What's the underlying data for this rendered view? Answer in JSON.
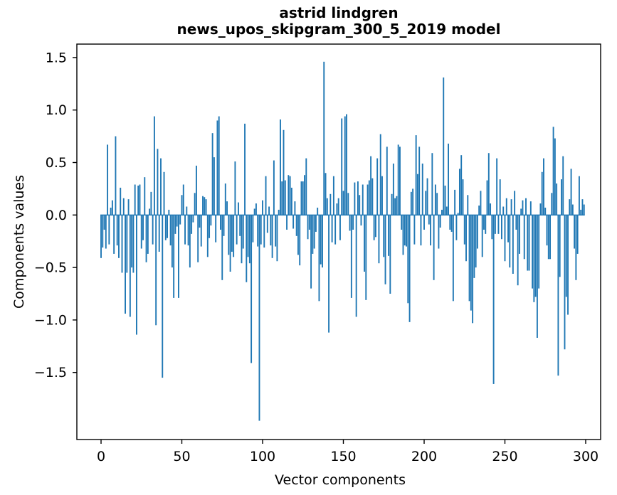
{
  "figure": {
    "title_line1": "astrid lindgren",
    "title_line2": "news_upos_skipgram_300_5_2019 model",
    "xlabel": "Vector components",
    "ylabel": "Components values"
  },
  "chart_data": {
    "type": "bar",
    "title": "astrid lindgren\nnews_upos_skipgram_300_5_2019 model",
    "xlabel": "Vector components",
    "ylabel": "Components values",
    "bar_color": "#1f77b4",
    "background_color": "#ffffff",
    "grid": false,
    "legend": false,
    "x_ticks": [
      0,
      50,
      100,
      150,
      200,
      250,
      300
    ],
    "x_tick_labels": [
      "0",
      "50",
      "100",
      "150",
      "200",
      "250",
      "300"
    ],
    "y_ticks": [
      1.5,
      1.0,
      0.5,
      0.0,
      -0.5,
      -1.0,
      -1.5
    ],
    "y_tick_labels": [
      "1.5",
      "1.0",
      "0.5",
      "0.0",
      "−0.5",
      "−1.0",
      "−1.5"
    ],
    "xlim": [
      -15,
      309
    ],
    "ylim": [
      -2.14,
      1.63
    ],
    "x": "component index 0..299",
    "values": [
      -0.41,
      -0.31,
      -0.14,
      -0.32,
      0.67,
      -0.28,
      0.07,
      0.14,
      -0.37,
      0.75,
      -0.29,
      -0.41,
      0.26,
      -0.55,
      0.16,
      -0.94,
      -0.55,
      0.15,
      -0.97,
      -0.5,
      -0.55,
      0.29,
      -1.14,
      0.28,
      0.29,
      -0.32,
      -0.24,
      0.36,
      -0.45,
      -0.37,
      0.06,
      0.22,
      -0.28,
      0.94,
      -1.05,
      0.63,
      -0.35,
      0.54,
      -1.55,
      0.41,
      -0.24,
      -0.22,
      0.05,
      -0.29,
      -0.5,
      -0.79,
      -0.18,
      -0.11,
      -0.79,
      -0.09,
      0.19,
      0.29,
      -0.28,
      0.08,
      -0.29,
      -0.5,
      -0.18,
      -0.07,
      0.21,
      0.47,
      -0.45,
      -0.12,
      -0.3,
      0.18,
      0.17,
      0.15,
      -0.4,
      -0.22,
      -0.1,
      0.78,
      0.55,
      -0.26,
      0.9,
      0.94,
      -0.14,
      -0.62,
      -0.2,
      0.3,
      0.13,
      -0.38,
      -0.54,
      -0.35,
      -0.4,
      0.51,
      -0.28,
      0.12,
      -0.2,
      -0.46,
      -0.32,
      0.87,
      -0.64,
      -0.4,
      -0.46,
      -1.41,
      -0.26,
      0.06,
      0.11,
      -0.3,
      -1.96,
      -0.28,
      0.14,
      -0.31,
      0.37,
      -0.17,
      0.08,
      -0.29,
      -0.41,
      0.52,
      -0.3,
      -0.44,
      0.05,
      0.91,
      0.32,
      0.81,
      0.33,
      -0.14,
      0.38,
      0.37,
      0.26,
      -0.13,
      0.13,
      -0.2,
      -0.38,
      -0.48,
      0.32,
      0.32,
      0.38,
      0.54,
      -0.23,
      -0.14,
      -0.7,
      -0.37,
      -0.32,
      -0.16,
      0.07,
      -0.82,
      -0.47,
      -0.5,
      1.46,
      0.4,
      0.16,
      -1.12,
      0.2,
      -0.26,
      0.37,
      -0.28,
      0.11,
      0.16,
      -0.24,
      0.92,
      0.23,
      0.94,
      0.96,
      0.21,
      -0.15,
      -0.79,
      -0.14,
      0.31,
      -0.97,
      0.32,
      0.19,
      -0.1,
      0.29,
      -0.54,
      -0.81,
      0.29,
      0.33,
      0.56,
      0.35,
      -0.24,
      -0.21,
      0.54,
      -0.46,
      0.77,
      0.37,
      -0.4,
      -0.66,
      0.65,
      -0.39,
      -0.75,
      0.2,
      0.49,
      0.16,
      0.18,
      0.67,
      0.65,
      -0.14,
      -0.38,
      -0.29,
      -0.3,
      -0.84,
      -1.02,
      0.22,
      0.25,
      -0.28,
      0.76,
      0.39,
      0.65,
      -0.29,
      0.49,
      -0.14,
      0.23,
      0.35,
      -0.09,
      -0.29,
      0.59,
      -0.62,
      0.29,
      0.21,
      -0.32,
      -0.12,
      0.05,
      1.31,
      0.28,
      0.08,
      0.68,
      -0.14,
      -0.16,
      -0.82,
      0.24,
      -0.24,
      0.02,
      0.44,
      0.57,
      0.34,
      -0.28,
      -0.44,
      0.19,
      -0.82,
      -0.91,
      -1.03,
      -0.6,
      -0.5,
      -0.32,
      0.09,
      0.23,
      -0.4,
      -0.14,
      -0.18,
      0.33,
      0.59,
      0.11,
      -0.23,
      -1.61,
      -0.18,
      0.54,
      -0.18,
      0.34,
      -0.23,
      0.08,
      -0.44,
      0.16,
      -0.26,
      -0.5,
      0.15,
      -0.56,
      0.23,
      -0.14,
      -0.67,
      -0.37,
      0.06,
      0.14,
      -0.42,
      0.16,
      -0.53,
      -0.53,
      0.13,
      -0.7,
      -0.83,
      -0.78,
      -1.17,
      -0.7,
      0.11,
      0.41,
      0.54,
      0.07,
      -0.29,
      -0.42,
      -0.42,
      0.21,
      0.84,
      0.73,
      0.3,
      -1.53,
      -0.59,
      0.34,
      0.56,
      -1.28,
      -0.78,
      -0.95,
      0.15,
      0.44,
      0.1,
      -0.32,
      -0.62,
      -0.37,
      0.37,
      0.05,
      0.15,
      0.1
    ]
  }
}
